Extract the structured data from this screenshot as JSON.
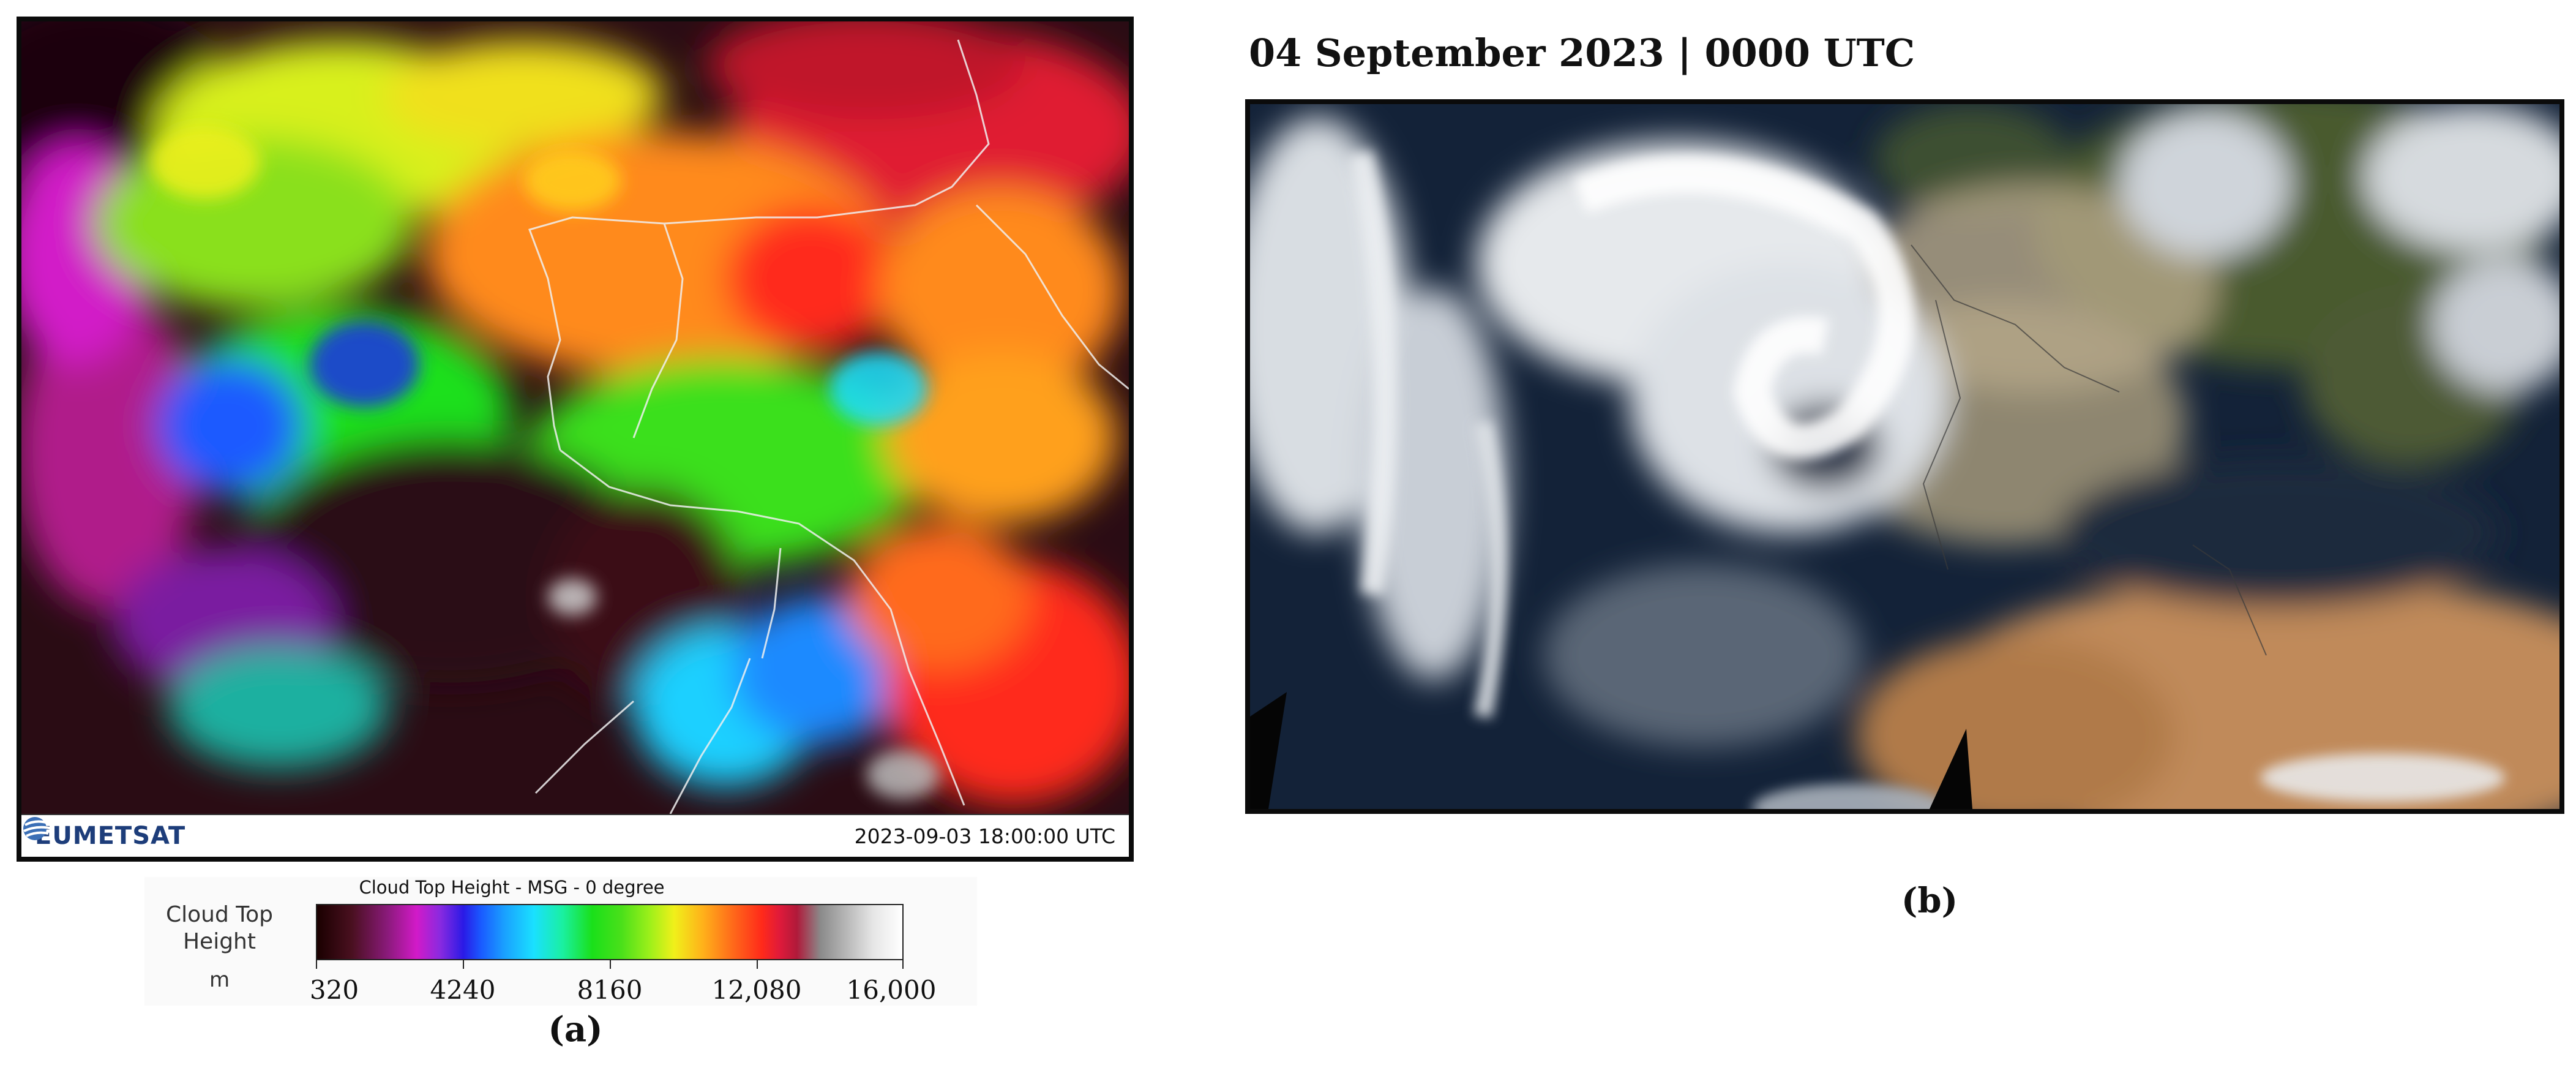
{
  "panel_a": {
    "logo_text": "EUMETSAT",
    "timestamp": "2023-09-03 18:00:00 UTC",
    "legend": {
      "title": "Cloud Top Height - MSG - 0 degree",
      "label_line1": "Cloud Top",
      "label_line2": "Height",
      "unit": "m",
      "ticks": [
        "320",
        "4240",
        "8160",
        "12,080",
        "16,000"
      ]
    },
    "caption": "(a)"
  },
  "panel_b": {
    "title": "04 September 2023 | 0000 UTC",
    "caption": "(b)"
  }
}
